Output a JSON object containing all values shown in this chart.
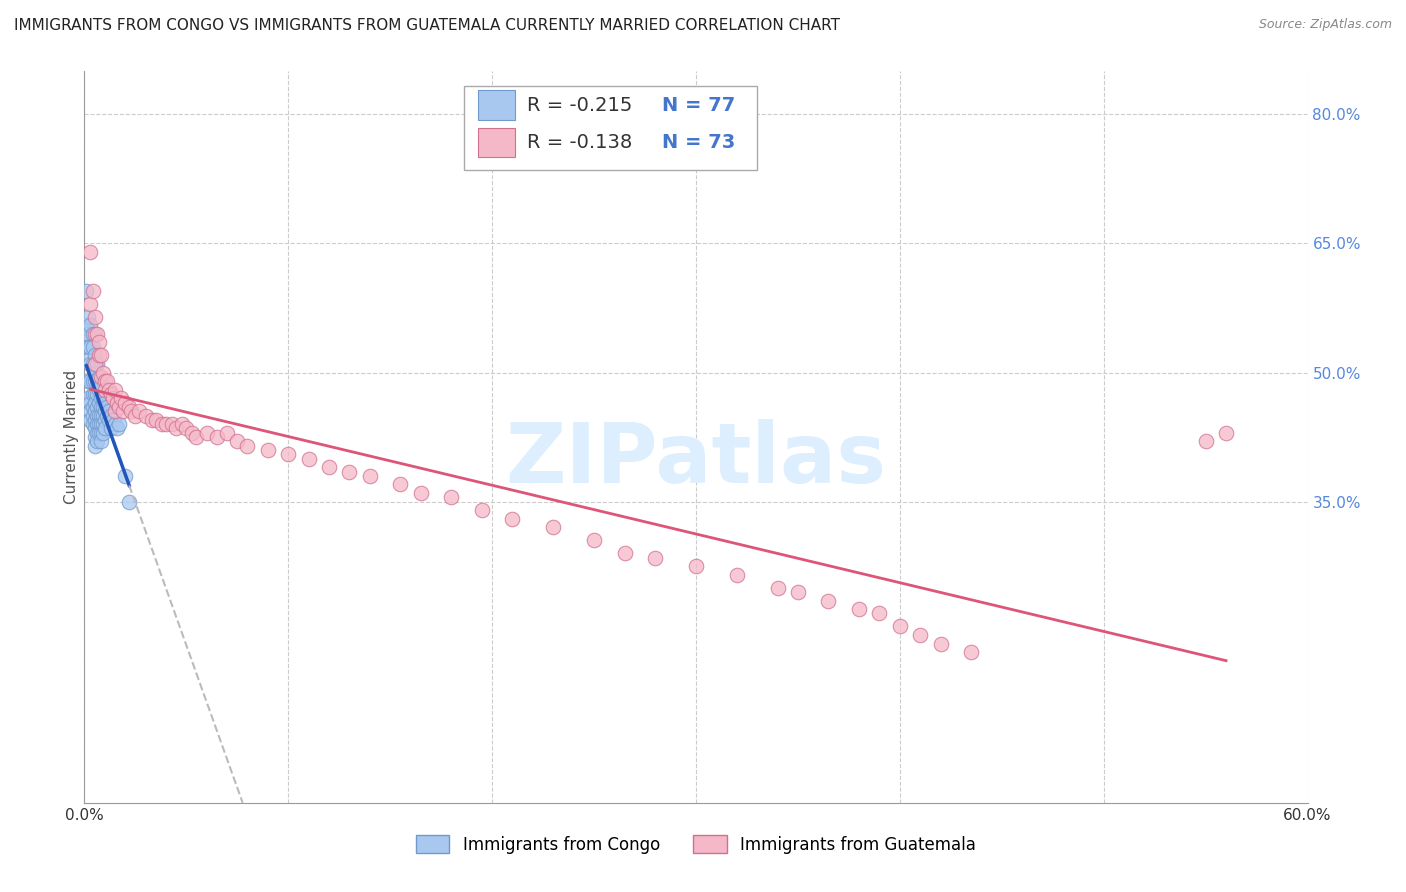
{
  "title": "IMMIGRANTS FROM CONGO VS IMMIGRANTS FROM GUATEMALA CURRENTLY MARRIED CORRELATION CHART",
  "source": "Source: ZipAtlas.com",
  "ylabel": "Currently Married",
  "xlim": [
    0.0,
    0.6
  ],
  "ylim": [
    0.0,
    0.85
  ],
  "xticks": [
    0.0,
    0.1,
    0.2,
    0.3,
    0.4,
    0.5,
    0.6
  ],
  "xticklabels": [
    "0.0%",
    "",
    "",
    "",
    "",
    "",
    "60.0%"
  ],
  "ytick_positions": [
    0.35,
    0.5,
    0.65,
    0.8
  ],
  "ytick_labels": [
    "35.0%",
    "50.0%",
    "65.0%",
    "80.0%"
  ],
  "grid_color": "#cccccc",
  "background_color": "#ffffff",
  "watermark_text": "ZIPatlas",
  "congo_color": "#a8c8f0",
  "congo_edge_color": "#7099cc",
  "guatemala_color": "#f5b8c8",
  "guatemala_edge_color": "#d07090",
  "congo_line_color": "#2255bb",
  "guatemala_line_color": "#dd5577",
  "dashed_line_color": "#bbbbbb",
  "legend_r_congo": "R = -0.215",
  "legend_n_congo": "N = 77",
  "legend_r_guatemala": "R = -0.138",
  "legend_n_guatemala": "N = 73",
  "legend_r_color": "#333333",
  "legend_n_color": "#4477cc",
  "title_fontsize": 11,
  "axis_label_fontsize": 11,
  "tick_fontsize": 11,
  "legend_fontsize": 14,
  "watermark_fontsize": 60,
  "watermark_color": "#ddeeff",
  "right_tick_color": "#5588dd",
  "congo_points_x": [
    0.001,
    0.001,
    0.001,
    0.002,
    0.002,
    0.002,
    0.002,
    0.002,
    0.002,
    0.003,
    0.003,
    0.003,
    0.003,
    0.003,
    0.003,
    0.003,
    0.004,
    0.004,
    0.004,
    0.004,
    0.004,
    0.004,
    0.004,
    0.004,
    0.005,
    0.005,
    0.005,
    0.005,
    0.005,
    0.005,
    0.005,
    0.005,
    0.005,
    0.005,
    0.005,
    0.006,
    0.006,
    0.006,
    0.006,
    0.006,
    0.006,
    0.006,
    0.006,
    0.007,
    0.007,
    0.007,
    0.007,
    0.007,
    0.007,
    0.008,
    0.008,
    0.008,
    0.008,
    0.008,
    0.008,
    0.008,
    0.009,
    0.009,
    0.009,
    0.009,
    0.009,
    0.01,
    0.01,
    0.01,
    0.01,
    0.011,
    0.011,
    0.012,
    0.012,
    0.013,
    0.013,
    0.014,
    0.015,
    0.016,
    0.017,
    0.02,
    0.022
  ],
  "congo_points_y": [
    0.595,
    0.555,
    0.535,
    0.565,
    0.545,
    0.53,
    0.515,
    0.49,
    0.47,
    0.555,
    0.53,
    0.51,
    0.49,
    0.465,
    0.455,
    0.445,
    0.545,
    0.53,
    0.51,
    0.49,
    0.475,
    0.46,
    0.45,
    0.44,
    0.52,
    0.51,
    0.5,
    0.49,
    0.475,
    0.465,
    0.455,
    0.445,
    0.435,
    0.425,
    0.415,
    0.51,
    0.49,
    0.475,
    0.46,
    0.45,
    0.44,
    0.43,
    0.42,
    0.495,
    0.48,
    0.465,
    0.45,
    0.44,
    0.43,
    0.485,
    0.47,
    0.46,
    0.45,
    0.44,
    0.43,
    0.42,
    0.47,
    0.46,
    0.45,
    0.44,
    0.43,
    0.465,
    0.455,
    0.445,
    0.435,
    0.46,
    0.45,
    0.455,
    0.445,
    0.45,
    0.435,
    0.445,
    0.44,
    0.435,
    0.44,
    0.38,
    0.35
  ],
  "guatemala_points_x": [
    0.003,
    0.003,
    0.004,
    0.005,
    0.005,
    0.005,
    0.006,
    0.007,
    0.007,
    0.008,
    0.008,
    0.009,
    0.01,
    0.01,
    0.011,
    0.012,
    0.013,
    0.014,
    0.015,
    0.015,
    0.016,
    0.017,
    0.018,
    0.019,
    0.02,
    0.022,
    0.023,
    0.025,
    0.027,
    0.03,
    0.033,
    0.035,
    0.038,
    0.04,
    0.043,
    0.045,
    0.048,
    0.05,
    0.053,
    0.055,
    0.06,
    0.065,
    0.07,
    0.075,
    0.08,
    0.09,
    0.1,
    0.11,
    0.12,
    0.13,
    0.14,
    0.155,
    0.165,
    0.18,
    0.195,
    0.21,
    0.23,
    0.25,
    0.265,
    0.28,
    0.3,
    0.32,
    0.34,
    0.35,
    0.365,
    0.38,
    0.39,
    0.4,
    0.41,
    0.42,
    0.435,
    0.55,
    0.56
  ],
  "guatemala_points_y": [
    0.64,
    0.58,
    0.595,
    0.565,
    0.545,
    0.51,
    0.545,
    0.535,
    0.52,
    0.52,
    0.495,
    0.5,
    0.49,
    0.48,
    0.49,
    0.48,
    0.475,
    0.47,
    0.48,
    0.455,
    0.465,
    0.46,
    0.47,
    0.455,
    0.465,
    0.46,
    0.455,
    0.45,
    0.455,
    0.45,
    0.445,
    0.445,
    0.44,
    0.44,
    0.44,
    0.435,
    0.44,
    0.435,
    0.43,
    0.425,
    0.43,
    0.425,
    0.43,
    0.42,
    0.415,
    0.41,
    0.405,
    0.4,
    0.39,
    0.385,
    0.38,
    0.37,
    0.36,
    0.355,
    0.34,
    0.33,
    0.32,
    0.305,
    0.29,
    0.285,
    0.275,
    0.265,
    0.25,
    0.245,
    0.235,
    0.225,
    0.22,
    0.205,
    0.195,
    0.185,
    0.175,
    0.42,
    0.43
  ]
}
